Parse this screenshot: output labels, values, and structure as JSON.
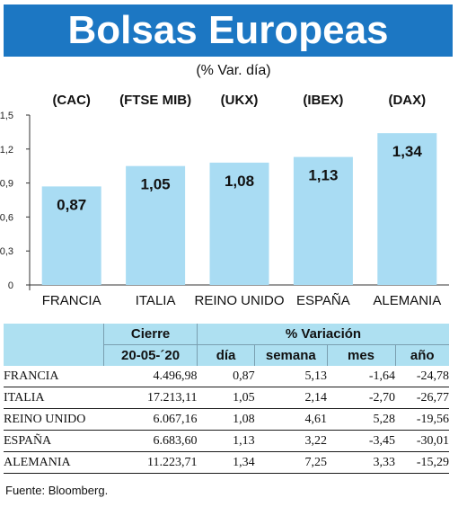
{
  "title": "Bolsas Europeas",
  "subtitle": "(% Var. día)",
  "chart_data": {
    "type": "bar",
    "categories": [
      "FRANCIA",
      "ITALIA",
      "REINO UNIDO",
      "ESPAÑA",
      "ALEMANIA"
    ],
    "index_labels": [
      "(CAC)",
      "(FTSE MIB)",
      "(UKX)",
      "(IBEX)",
      "(DAX)"
    ],
    "values": [
      0.87,
      1.05,
      1.08,
      1.13,
      1.34
    ],
    "value_labels": [
      "0,87",
      "1,05",
      "1,08",
      "1,13",
      "1,34"
    ],
    "yticks": [
      "0",
      "0,3",
      "0,6",
      "0,9",
      "1,2",
      "1,5"
    ],
    "ylim": [
      0,
      1.5
    ],
    "bar_color": "#a9dcf3"
  },
  "table": {
    "header_cierre": "Cierre",
    "header_variacion": "% Variación",
    "sub_cierre": "20-05-´20",
    "sub_dia": "día",
    "sub_semana": "semana",
    "sub_mes": "mes",
    "sub_ano": "año",
    "rows": [
      {
        "name": "FRANCIA",
        "cierre": "4.496,98",
        "dia": "0,87",
        "semana": "5,13",
        "mes": "-1,64",
        "ano": "-24,78"
      },
      {
        "name": "ITALIA",
        "cierre": "17.213,11",
        "dia": "1,05",
        "semana": "2,14",
        "mes": "-2,70",
        "ano": "-26,77"
      },
      {
        "name": "REINO UNIDO",
        "cierre": "6.067,16",
        "dia": "1,08",
        "semana": "4,61",
        "mes": "5,28",
        "ano": "-19,56"
      },
      {
        "name": "ESPAÑA",
        "cierre": "6.683,60",
        "dia": "1,13",
        "semana": "3,22",
        "mes": "-3,45",
        "ano": "-30,01"
      },
      {
        "name": "ALEMANIA",
        "cierre": "11.223,71",
        "dia": "1,34",
        "semana": "7,25",
        "mes": "3,33",
        "ano": "-15,29"
      }
    ]
  },
  "source": "Fuente: Bloomberg.",
  "colors": {
    "title_bg": "#1c77c3",
    "table_header_bg": "#aee0f1"
  }
}
